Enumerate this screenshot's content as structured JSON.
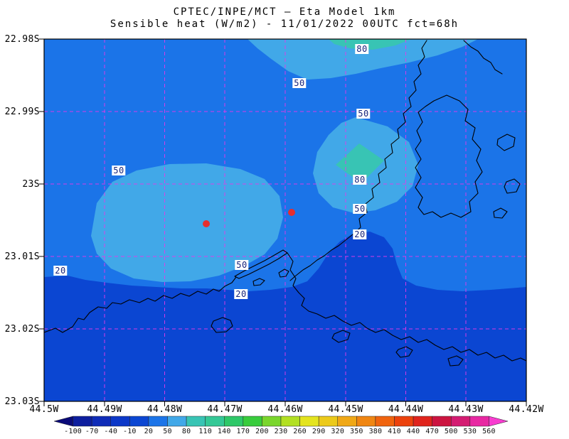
{
  "chart_data": {
    "type": "heatmap",
    "title_line1": "CPTEC/INPE/MCT — Eta Model 1km",
    "title_line2": "Sensible heat (W/m2) - 11/01/2022 00UTC fct=68h",
    "institution": "CPTEC/INPE/MCT",
    "model": "Eta Model 1km",
    "variable": "Sensible heat (W/m2)",
    "init_time": "11/01/2022 00UTC",
    "forecast_hour": "fct=68h",
    "legend_position": "bottom",
    "grid": "dashed",
    "grid_color": "#e838e8",
    "coast_color": "#000000",
    "marker_color": "#e62e2e",
    "marker_count": 2,
    "lat_axis": {
      "labels": [
        "22.98S",
        "22.99S",
        "23S",
        "23.01S",
        "23.02S",
        "23.03S"
      ]
    },
    "lon_axis": {
      "labels": [
        "44.5W",
        "44.49W",
        "44.48W",
        "44.47W",
        "44.46W",
        "44.45W",
        "44.44W",
        "44.43W",
        "44.42W"
      ]
    },
    "map_bands": {
      "band_m10_20": {
        "range": [
          -10,
          20
        ],
        "color": "#0b46d2"
      },
      "band_20_50": {
        "range": [
          20,
          50
        ],
        "color": "#1b74e8"
      },
      "band_50_80": {
        "range": [
          50,
          80
        ],
        "color": "#41a8e8"
      },
      "band_80_110": {
        "range": [
          80,
          110
        ],
        "color": "#38c4b4"
      }
    },
    "contour_labels": [
      "80",
      "50",
      "50",
      "50",
      "80",
      "50",
      "20",
      "20",
      "50",
      "20"
    ],
    "colorbar": {
      "tick_labels": [
        "-100",
        "-70",
        "-40",
        "-10",
        "20",
        "50",
        "80",
        "110",
        "140",
        "170",
        "200",
        "230",
        "260",
        "290",
        "320",
        "350",
        "380",
        "410",
        "440",
        "470",
        "500",
        "530",
        "560"
      ],
      "colors": [
        "#0a0a78",
        "#0d1e9e",
        "#0f2cb8",
        "#0c38c8",
        "#0b46d2",
        "#1b74e8",
        "#41a8e8",
        "#38c4b4",
        "#34c896",
        "#2ec868",
        "#38cc3c",
        "#7ad62c",
        "#b2e022",
        "#e4e41e",
        "#ecca1a",
        "#f0a816",
        "#f08612",
        "#f0640e",
        "#ec420c",
        "#e0241c",
        "#cc1440",
        "#d41c72",
        "#e828a2",
        "#f83cd0"
      ]
    }
  }
}
